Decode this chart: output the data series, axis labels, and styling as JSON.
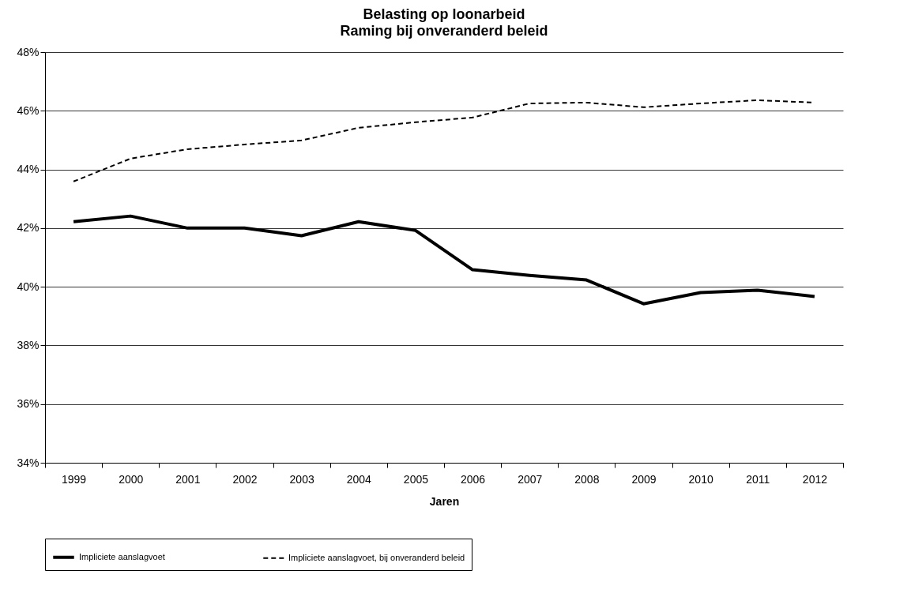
{
  "chart_data": {
    "type": "line",
    "title": "Belasting op loonarbeid",
    "subtitle": "Raming bij onveranderd beleid",
    "xlabel": "Jaren",
    "categories": [
      "1999",
      "2000",
      "2001",
      "2002",
      "2003",
      "2004",
      "2005",
      "2006",
      "2007",
      "2008",
      "2009",
      "2010",
      "2011",
      "2012"
    ],
    "series": [
      {
        "name": "Impliciete aanslagvoet",
        "color": "#000000",
        "line_style": "solid",
        "values": [
          42.22,
          42.41,
          42.0,
          42.0,
          41.74,
          42.22,
          41.92,
          40.58,
          40.39,
          40.23,
          39.42,
          39.8,
          39.88,
          39.67
        ]
      },
      {
        "name": "Impliciete aanslagvoet, bij onveranderd beleid",
        "color": "#000000",
        "line_style": "dashed",
        "values": [
          43.59,
          44.37,
          44.69,
          44.85,
          44.99,
          45.42,
          45.61,
          45.77,
          46.25,
          46.28,
          46.12,
          46.25,
          46.36,
          46.28
        ]
      }
    ],
    "ylim": [
      34,
      48
    ],
    "yticks": [
      {
        "value": 34,
        "label": "34%"
      },
      {
        "value": 36,
        "label": "36%"
      },
      {
        "value": 38,
        "label": "38%"
      },
      {
        "value": 40,
        "label": "40%"
      },
      {
        "value": 42,
        "label": "42%"
      },
      {
        "value": 44,
        "label": "44%"
      },
      {
        "value": 46,
        "label": "46%"
      },
      {
        "value": 48,
        "label": "48%"
      }
    ],
    "grid": "y",
    "legend": "bottom",
    "marker": "none"
  }
}
